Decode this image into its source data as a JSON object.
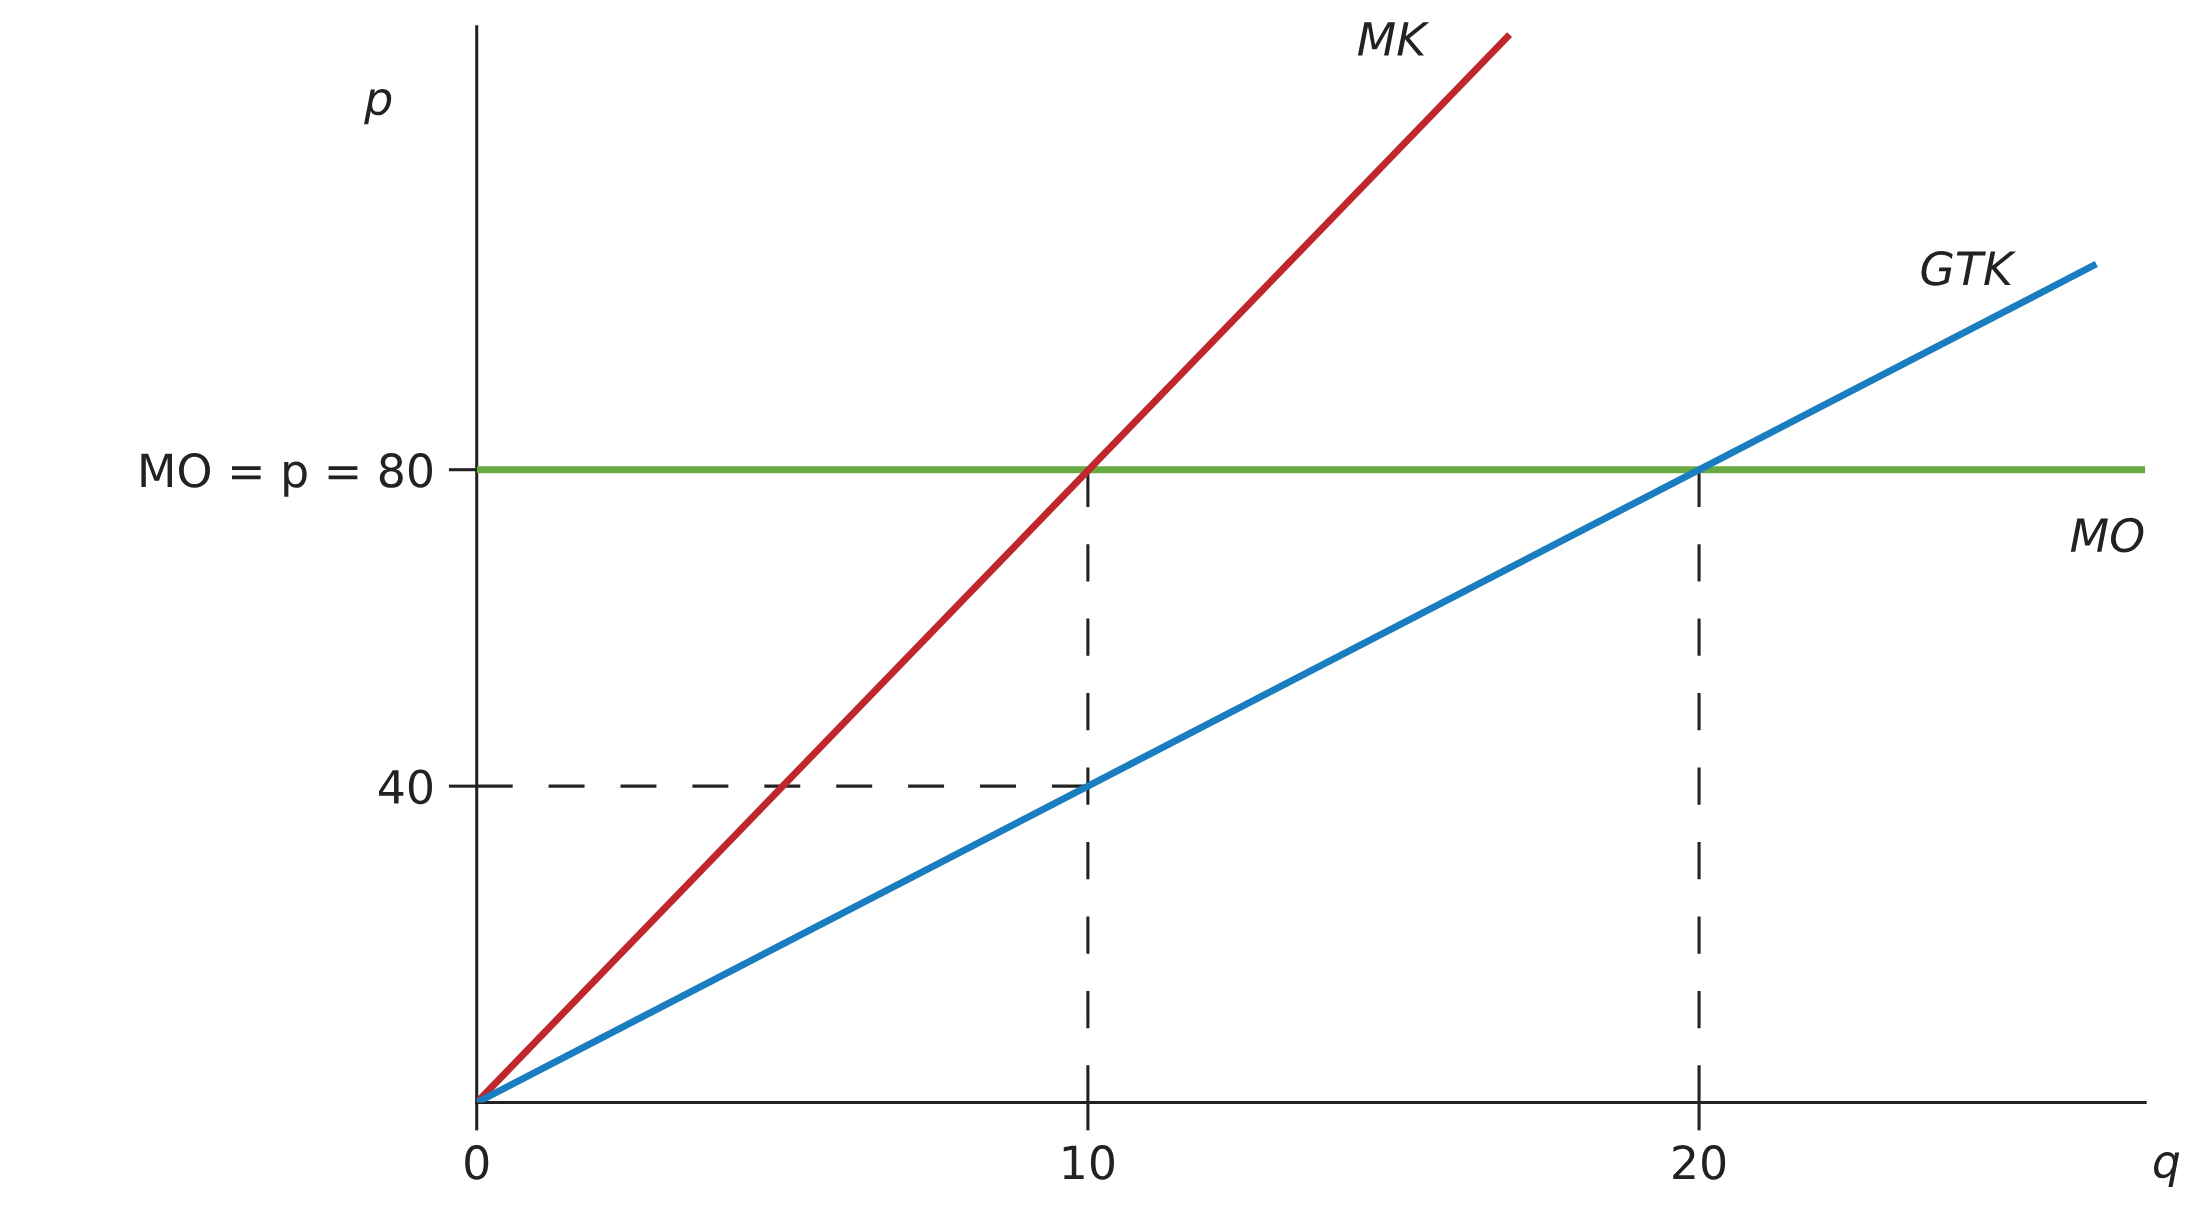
{
  "chart_data": {
    "type": "line",
    "xlabel": "q",
    "ylabel": "p",
    "xlim": [
      0,
      27.3
    ],
    "ylim": [
      0,
      136
    ],
    "xticks": [
      0,
      10,
      20
    ],
    "yticks": [
      40,
      {
        "value": 80,
        "label": "MO = p = 80"
      }
    ],
    "series": [
      {
        "x": [
          10,
          10
        ],
        "values": [
          0,
          80
        ],
        "color": "#222222",
        "line_style": "dashed"
      },
      {
        "x": [
          20,
          20
        ],
        "values": [
          0,
          80
        ],
        "color": "#222222",
        "line_style": "dashed"
      },
      {
        "x": [
          0,
          10
        ],
        "values": [
          40,
          40
        ],
        "color": "#222222",
        "line_style": "dashed"
      },
      {
        "name": "MO",
        "x": [
          0,
          27.3
        ],
        "values": [
          80,
          80
        ],
        "color": "#6aaa45"
      },
      {
        "name": "MK",
        "x": [
          0,
          16.9
        ],
        "values": [
          0,
          135
        ],
        "color": "#c0272d"
      },
      {
        "name": "GTK",
        "x": [
          0,
          26.5
        ],
        "values": [
          0,
          106
        ],
        "color": "#1a7dc0"
      }
    ]
  }
}
